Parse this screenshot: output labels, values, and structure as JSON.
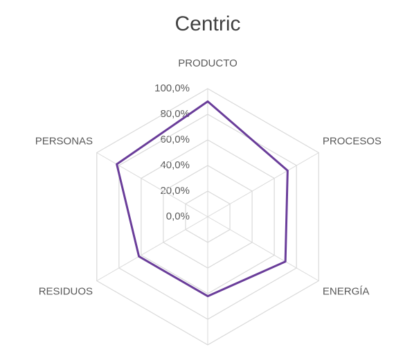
{
  "chart_data": {
    "type": "radar",
    "title": "Centric",
    "categories": [
      "PRODUCTO",
      "PROCESOS",
      "ENERGÍA",
      null,
      "RESIDUOS",
      "PERSONAS"
    ],
    "series": [
      {
        "name": "Centric",
        "color": "#6a3d9a",
        "values": [
          90,
          72,
          70,
          62,
          62,
          82
        ]
      }
    ],
    "ylim": [
      0,
      100
    ],
    "yticks": [
      {
        "value": 0,
        "label": "0,0%"
      },
      {
        "value": 20,
        "label": "20,0%"
      },
      {
        "value": 40,
        "label": "40,0%"
      },
      {
        "value": 60,
        "label": "60,0%"
      },
      {
        "value": 80,
        "label": "80,0%"
      },
      {
        "value": 100,
        "label": "100,0%"
      }
    ],
    "grid": true
  }
}
